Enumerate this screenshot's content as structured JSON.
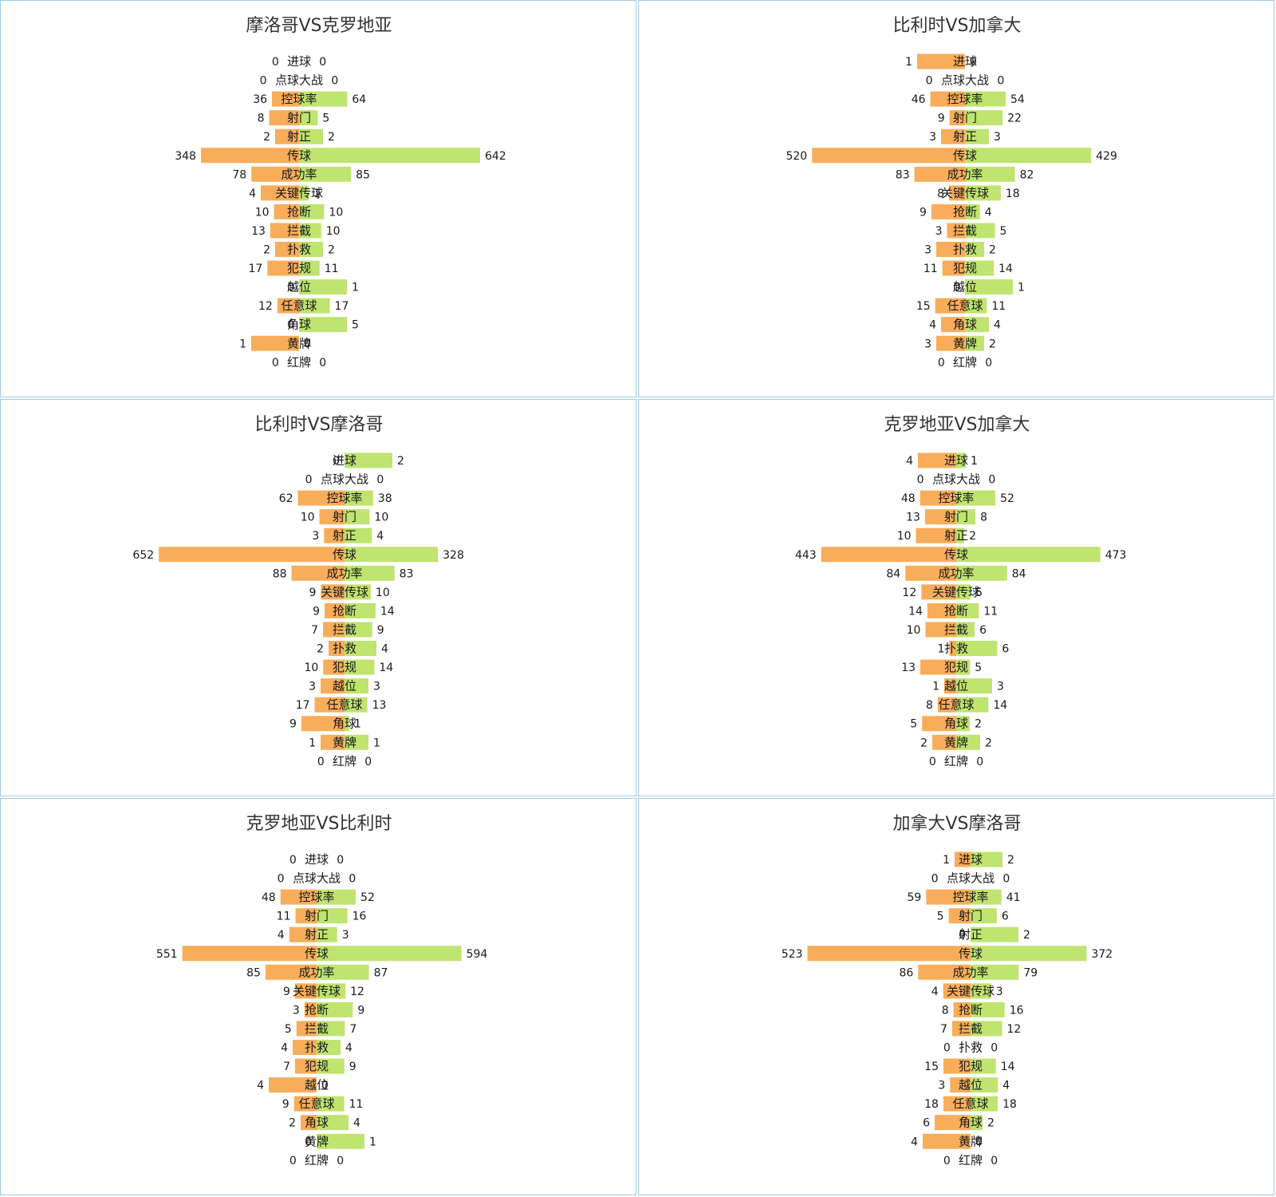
{
  "chart_data": [
    {
      "type": "bar",
      "title": "摩洛哥VS克罗地亚",
      "categories": [
        "进球",
        "点球大战",
        "控球率",
        "射门",
        "射正",
        "传球",
        "成功率",
        "关键传球",
        "抢断",
        "拦截",
        "扑救",
        "犯规",
        "越位",
        "任意球",
        "角球",
        "黄牌",
        "红牌"
      ],
      "series": [
        {
          "values": [
            0,
            0,
            36,
            8,
            2,
            348,
            78,
            4,
            10,
            13,
            2,
            17,
            0,
            12,
            0,
            1,
            0
          ]
        },
        {
          "values": [
            0,
            0,
            64,
            5,
            2,
            642,
            85,
            1,
            10,
            10,
            2,
            11,
            1,
            17,
            5,
            0,
            0
          ]
        }
      ]
    },
    {
      "type": "bar",
      "title": "比利时VS加拿大",
      "categories": [
        "进球",
        "点球大战",
        "控球率",
        "射门",
        "射正",
        "传球",
        "成功率",
        "关键传球",
        "抢断",
        "拦截",
        "扑救",
        "犯规",
        "越位",
        "任意球",
        "角球",
        "黄牌",
        "红牌"
      ],
      "series": [
        {
          "values": [
            1,
            0,
            46,
            9,
            3,
            520,
            83,
            8,
            9,
            3,
            3,
            11,
            0,
            15,
            4,
            3,
            0
          ]
        },
        {
          "values": [
            0,
            0,
            54,
            22,
            3,
            429,
            82,
            18,
            4,
            5,
            2,
            14,
            1,
            11,
            4,
            2,
            0
          ]
        }
      ]
    },
    {
      "type": "bar",
      "title": "比利时VS摩洛哥",
      "categories": [
        "进球",
        "点球大战",
        "控球率",
        "射门",
        "射正",
        "传球",
        "成功率",
        "关键传球",
        "抢断",
        "拦截",
        "扑救",
        "犯规",
        "越位",
        "任意球",
        "角球",
        "黄牌",
        "红牌"
      ],
      "series": [
        {
          "values": [
            0,
            0,
            62,
            10,
            3,
            652,
            88,
            9,
            9,
            7,
            2,
            10,
            3,
            17,
            9,
            1,
            0
          ]
        },
        {
          "values": [
            2,
            0,
            38,
            10,
            4,
            328,
            83,
            10,
            14,
            9,
            4,
            14,
            3,
            13,
            1,
            1,
            0
          ]
        }
      ]
    },
    {
      "type": "bar",
      "title": "克罗地亚VS加拿大",
      "categories": [
        "进球",
        "点球大战",
        "控球率",
        "射门",
        "射正",
        "传球",
        "成功率",
        "关键传球",
        "抢断",
        "拦截",
        "扑救",
        "犯规",
        "越位",
        "任意球",
        "角球",
        "黄牌",
        "红牌"
      ],
      "series": [
        {
          "values": [
            4,
            0,
            48,
            13,
            10,
            443,
            84,
            12,
            14,
            10,
            1,
            13,
            1,
            8,
            5,
            2,
            0
          ]
        },
        {
          "values": [
            1,
            0,
            52,
            8,
            2,
            473,
            84,
            5,
            11,
            6,
            6,
            5,
            3,
            14,
            2,
            2,
            0
          ]
        }
      ]
    },
    {
      "type": "bar",
      "title": "克罗地亚VS比利时",
      "categories": [
        "进球",
        "点球大战",
        "控球率",
        "射门",
        "射正",
        "传球",
        "成功率",
        "关键传球",
        "抢断",
        "拦截",
        "扑救",
        "犯规",
        "越位",
        "任意球",
        "角球",
        "黄牌",
        "红牌"
      ],
      "series": [
        {
          "values": [
            0,
            0,
            48,
            11,
            4,
            551,
            85,
            9,
            3,
            5,
            4,
            7,
            4,
            9,
            2,
            0,
            0
          ]
        },
        {
          "values": [
            0,
            0,
            52,
            16,
            3,
            594,
            87,
            12,
            9,
            7,
            4,
            9,
            0,
            11,
            4,
            1,
            0
          ]
        }
      ]
    },
    {
      "type": "bar",
      "title": "加拿大VS摩洛哥",
      "categories": [
        "进球",
        "点球大战",
        "控球率",
        "射门",
        "射正",
        "传球",
        "成功率",
        "关键传球",
        "抢断",
        "拦截",
        "扑救",
        "犯规",
        "越位",
        "任意球",
        "角球",
        "黄牌",
        "红牌"
      ],
      "series": [
        {
          "values": [
            1,
            0,
            59,
            5,
            0,
            523,
            86,
            4,
            8,
            7,
            0,
            15,
            3,
            18,
            6,
            4,
            0
          ]
        },
        {
          "values": [
            2,
            0,
            41,
            6,
            2,
            372,
            79,
            3,
            16,
            12,
            0,
            14,
            4,
            18,
            2,
            0,
            0
          ]
        }
      ]
    }
  ],
  "colors": {
    "left": "#f8ad5b",
    "right": "#bfe46f",
    "border": "#9ec9e6",
    "text": "#1a1a1a",
    "title": "#333333"
  }
}
